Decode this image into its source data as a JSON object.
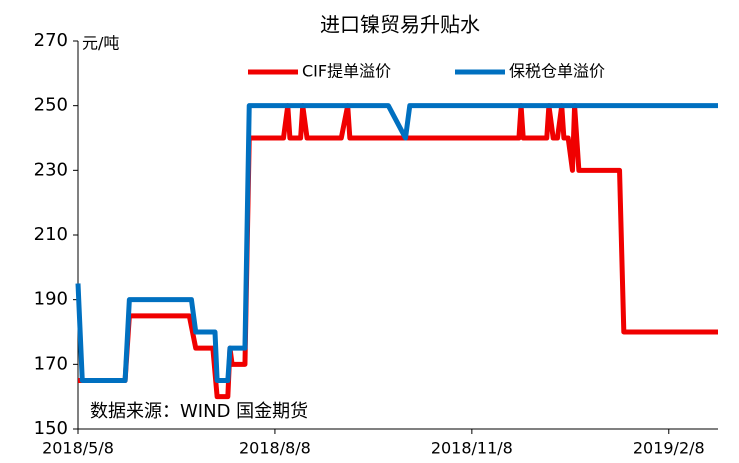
{
  "chart_data": {
    "type": "line",
    "title": "进口镍贸易升贴水",
    "y_unit": "元/吨",
    "source": "数据来源：WIND 国金期货",
    "xlim": [
      "2018/5/8",
      "2019/3/3"
    ],
    "xticks": [
      "2018/5/8",
      "2018/8/8",
      "2018/11/8",
      "2019/2/8"
    ],
    "ylim": [
      150,
      270
    ],
    "yticks": [
      150,
      170,
      190,
      210,
      230,
      250,
      270
    ],
    "grid": false,
    "legend": "top",
    "series": [
      {
        "name": "CIF提单溢价",
        "color": "#f00000",
        "x": [
          "2018/5/8",
          "2018/5/30",
          "2018/6/1",
          "2018/6/29",
          "2018/7/2",
          "2018/7/10",
          "2018/7/12",
          "2018/7/17",
          "2018/7/18",
          "2018/7/19",
          "2018/7/25",
          "2018/7/27",
          "2018/8/12",
          "2018/8/14",
          "2018/8/15",
          "2018/8/20",
          "2018/8/21",
          "2018/8/23",
          "2018/9/8",
          "2018/9/11",
          "2018/9/12",
          "2018/11/30",
          "2018/12/1",
          "2018/12/2",
          "2018/12/13",
          "2018/12/14",
          "2018/12/16",
          "2018/12/18",
          "2018/12/20",
          "2018/12/21",
          "2018/12/23",
          "2018/12/25",
          "2018/12/26",
          "2018/12/28",
          "2019/1/16",
          "2019/1/18",
          "2019/3/3"
        ],
        "values": [
          165,
          165,
          185,
          185,
          175,
          175,
          160,
          160,
          175,
          170,
          170,
          240,
          240,
          250,
          240,
          240,
          250,
          240,
          240,
          250,
          240,
          240,
          250,
          240,
          240,
          250,
          240,
          240,
          250,
          240,
          240,
          230,
          250,
          230,
          230,
          180,
          180
        ]
      },
      {
        "name": "保税仓单溢价",
        "color": "#0070c0",
        "x": [
          "2018/5/8",
          "2018/5/10",
          "2018/5/30",
          "2018/6/1",
          "2018/6/30",
          "2018/7/2",
          "2018/7/11",
          "2018/7/12",
          "2018/7/17",
          "2018/7/18",
          "2018/7/25",
          "2018/7/27",
          "2018/9/30",
          "2018/10/8",
          "2018/10/10",
          "2019/3/3"
        ],
        "values": [
          195,
          165,
          165,
          190,
          190,
          180,
          180,
          165,
          165,
          175,
          175,
          250,
          250,
          240,
          250,
          250
        ]
      }
    ]
  }
}
